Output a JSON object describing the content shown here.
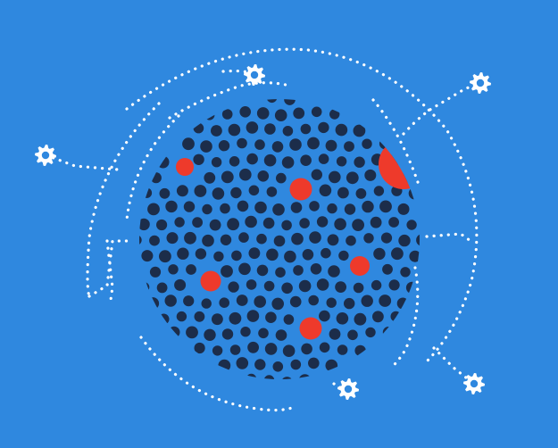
{
  "colors": {
    "background": "#2f88df",
    "dot_dark": "#1c2d4a",
    "dot_accent": "#ee3a2b",
    "line_white": "#ffffff",
    "gear_white": "#ffffff",
    "gear_hole": "#2f88df"
  },
  "illustration": {
    "subject": "particle-cluster-with-network-gears",
    "gear_icon_name": "gear-icon",
    "cluster_name": "particle-sphere"
  }
}
